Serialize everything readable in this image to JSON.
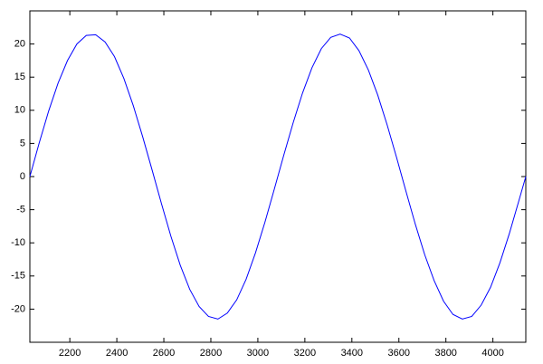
{
  "chart_data": {
    "type": "line",
    "x": [
      2030,
      2070,
      2110,
      2150,
      2190,
      2230,
      2270,
      2310,
      2350,
      2390,
      2430,
      2470,
      2510,
      2550,
      2590,
      2630,
      2670,
      2710,
      2750,
      2790,
      2830,
      2870,
      2910,
      2950,
      2990,
      3030,
      3070,
      3110,
      3150,
      3190,
      3230,
      3270,
      3310,
      3350,
      3390,
      3430,
      3470,
      3510,
      3550,
      3590,
      3630,
      3670,
      3710,
      3750,
      3790,
      3830,
      3870,
      3910,
      3950,
      3990,
      4030,
      4070,
      4110,
      4140
    ],
    "series": [
      {
        "color": "#0000ff",
        "values": [
          0,
          5.1,
          9.9,
          14.1,
          17.5,
          20,
          21.3,
          21.4,
          20.3,
          18.1,
          14.8,
          10.7,
          6,
          1,
          -4.1,
          -9,
          -13.4,
          -17,
          -19.6,
          -21.1,
          -21.5,
          -20.6,
          -18.6,
          -15.5,
          -11.5,
          -6.9,
          -1.9,
          3.2,
          8.1,
          12.6,
          16.4,
          19.3,
          21,
          21.5,
          20.9,
          19,
          16.1,
          12.3,
          7.8,
          2.9,
          -2.2,
          -7.2,
          -11.8,
          -15.7,
          -18.8,
          -20.8,
          -21.5,
          -21.1,
          -19.4,
          -16.7,
          -13,
          -8.6,
          -3.7,
          0
        ]
      }
    ],
    "xlim": [
      2030,
      4140
    ],
    "ylim": [
      -25,
      25
    ],
    "xticks": [
      2200,
      2400,
      2600,
      2800,
      3000,
      3200,
      3400,
      3600,
      3800,
      4000
    ],
    "yticks": [
      -20,
      -15,
      -10,
      -5,
      0,
      5,
      10,
      15,
      20
    ],
    "grid": false
  }
}
